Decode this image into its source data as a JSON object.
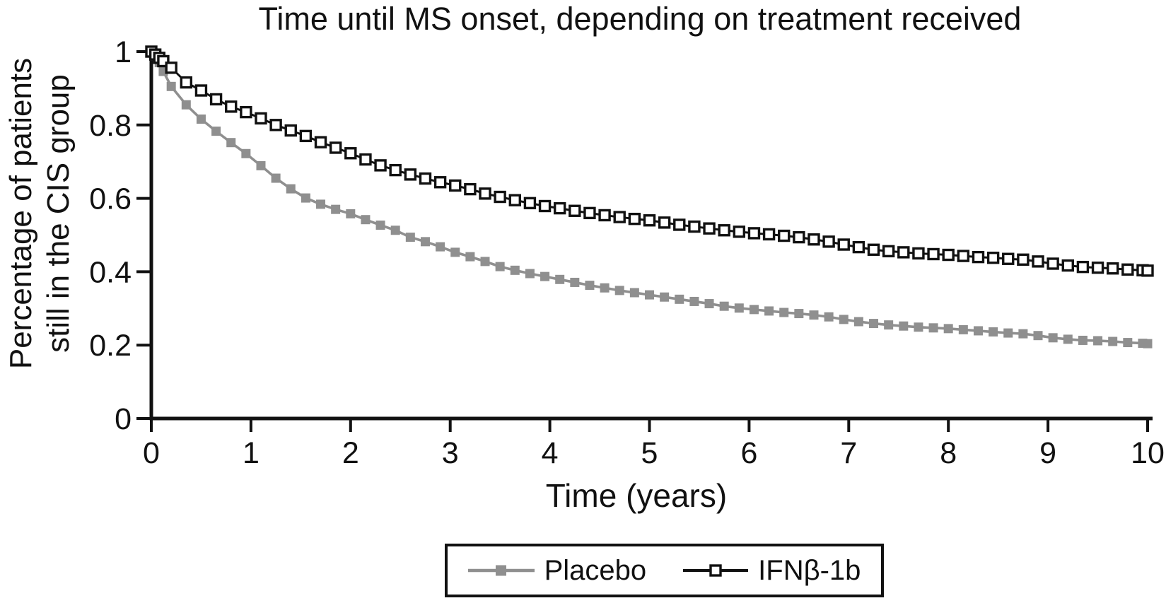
{
  "chart_data": {
    "type": "line",
    "title": "Time until MS onset, depending on treatment received",
    "xlabel": "Time (years)",
    "ylabel_lines": [
      "Percentage of patients",
      "still in the CIS group"
    ],
    "xlim": [
      0,
      10
    ],
    "ylim": [
      0,
      1
    ],
    "x_ticks": [
      0,
      1,
      2,
      3,
      4,
      5,
      6,
      7,
      8,
      9,
      10
    ],
    "y_ticks": [
      0,
      0.2,
      0.4,
      0.6,
      0.8,
      1
    ],
    "y_tick_labels": [
      "0",
      "0.2",
      "0.4",
      "0.6",
      "0.8",
      "1"
    ],
    "grid": false,
    "legend_position": "bottom-center",
    "series": [
      {
        "name": "Placebo",
        "color": "#8f8f8f",
        "marker": "filled-square",
        "x": [
          0,
          0.04,
          0.08,
          0.12,
          0.2,
          0.35,
          0.5,
          0.65,
          0.8,
          0.95,
          1.1,
          1.25,
          1.4,
          1.55,
          1.7,
          1.85,
          2,
          2.15,
          2.3,
          2.45,
          2.6,
          2.75,
          2.9,
          3.05,
          3.2,
          3.35,
          3.5,
          3.65,
          3.8,
          3.95,
          4.1,
          4.25,
          4.4,
          4.55,
          4.7,
          4.85,
          5,
          5.15,
          5.3,
          5.45,
          5.6,
          5.75,
          5.9,
          6.05,
          6.2,
          6.35,
          6.5,
          6.65,
          6.8,
          6.95,
          7.1,
          7.25,
          7.4,
          7.55,
          7.7,
          7.85,
          8,
          8.15,
          8.3,
          8.45,
          8.6,
          8.75,
          8.9,
          9.05,
          9.2,
          9.35,
          9.5,
          9.65,
          9.8,
          9.95,
          10
        ],
        "y": [
          1.0,
          0.988,
          0.97,
          0.946,
          0.905,
          0.855,
          0.816,
          0.783,
          0.752,
          0.722,
          0.689,
          0.655,
          0.626,
          0.601,
          0.584,
          0.57,
          0.558,
          0.542,
          0.527,
          0.513,
          0.494,
          0.482,
          0.468,
          0.453,
          0.441,
          0.428,
          0.414,
          0.404,
          0.395,
          0.387,
          0.379,
          0.371,
          0.363,
          0.356,
          0.349,
          0.343,
          0.337,
          0.331,
          0.325,
          0.319,
          0.313,
          0.306,
          0.301,
          0.297,
          0.293,
          0.289,
          0.286,
          0.282,
          0.277,
          0.27,
          0.264,
          0.259,
          0.255,
          0.252,
          0.249,
          0.247,
          0.245,
          0.242,
          0.239,
          0.236,
          0.233,
          0.231,
          0.226,
          0.22,
          0.216,
          0.213,
          0.212,
          0.21,
          0.207,
          0.205,
          0.204
        ]
      },
      {
        "name": "IFNβ-1b",
        "color": "#111111",
        "marker": "open-square",
        "x": [
          0,
          0.04,
          0.08,
          0.12,
          0.2,
          0.35,
          0.5,
          0.65,
          0.8,
          0.95,
          1.1,
          1.25,
          1.4,
          1.55,
          1.7,
          1.85,
          2,
          2.15,
          2.3,
          2.45,
          2.6,
          2.75,
          2.9,
          3.05,
          3.2,
          3.35,
          3.5,
          3.65,
          3.8,
          3.95,
          4.1,
          4.25,
          4.4,
          4.55,
          4.7,
          4.85,
          5,
          5.15,
          5.3,
          5.45,
          5.6,
          5.75,
          5.9,
          6.05,
          6.2,
          6.35,
          6.5,
          6.65,
          6.8,
          6.95,
          7.1,
          7.25,
          7.4,
          7.55,
          7.7,
          7.85,
          8,
          8.15,
          8.3,
          8.45,
          8.6,
          8.75,
          8.9,
          9.05,
          9.2,
          9.35,
          9.5,
          9.65,
          9.8,
          9.95,
          10
        ],
        "y": [
          1.0,
          0.992,
          0.983,
          0.974,
          0.956,
          0.916,
          0.894,
          0.87,
          0.85,
          0.835,
          0.818,
          0.8,
          0.785,
          0.77,
          0.753,
          0.738,
          0.723,
          0.706,
          0.69,
          0.677,
          0.665,
          0.654,
          0.644,
          0.635,
          0.625,
          0.613,
          0.604,
          0.595,
          0.587,
          0.579,
          0.573,
          0.566,
          0.56,
          0.554,
          0.549,
          0.544,
          0.54,
          0.534,
          0.528,
          0.523,
          0.518,
          0.513,
          0.509,
          0.505,
          0.502,
          0.498,
          0.494,
          0.488,
          0.482,
          0.474,
          0.467,
          0.46,
          0.456,
          0.453,
          0.45,
          0.448,
          0.446,
          0.443,
          0.44,
          0.438,
          0.435,
          0.433,
          0.428,
          0.422,
          0.417,
          0.413,
          0.411,
          0.409,
          0.406,
          0.404,
          0.403
        ]
      }
    ]
  },
  "colors": {
    "axis": "#111111",
    "background": "#ffffff",
    "placebo": "#8f8f8f",
    "ifnb1b": "#111111"
  }
}
